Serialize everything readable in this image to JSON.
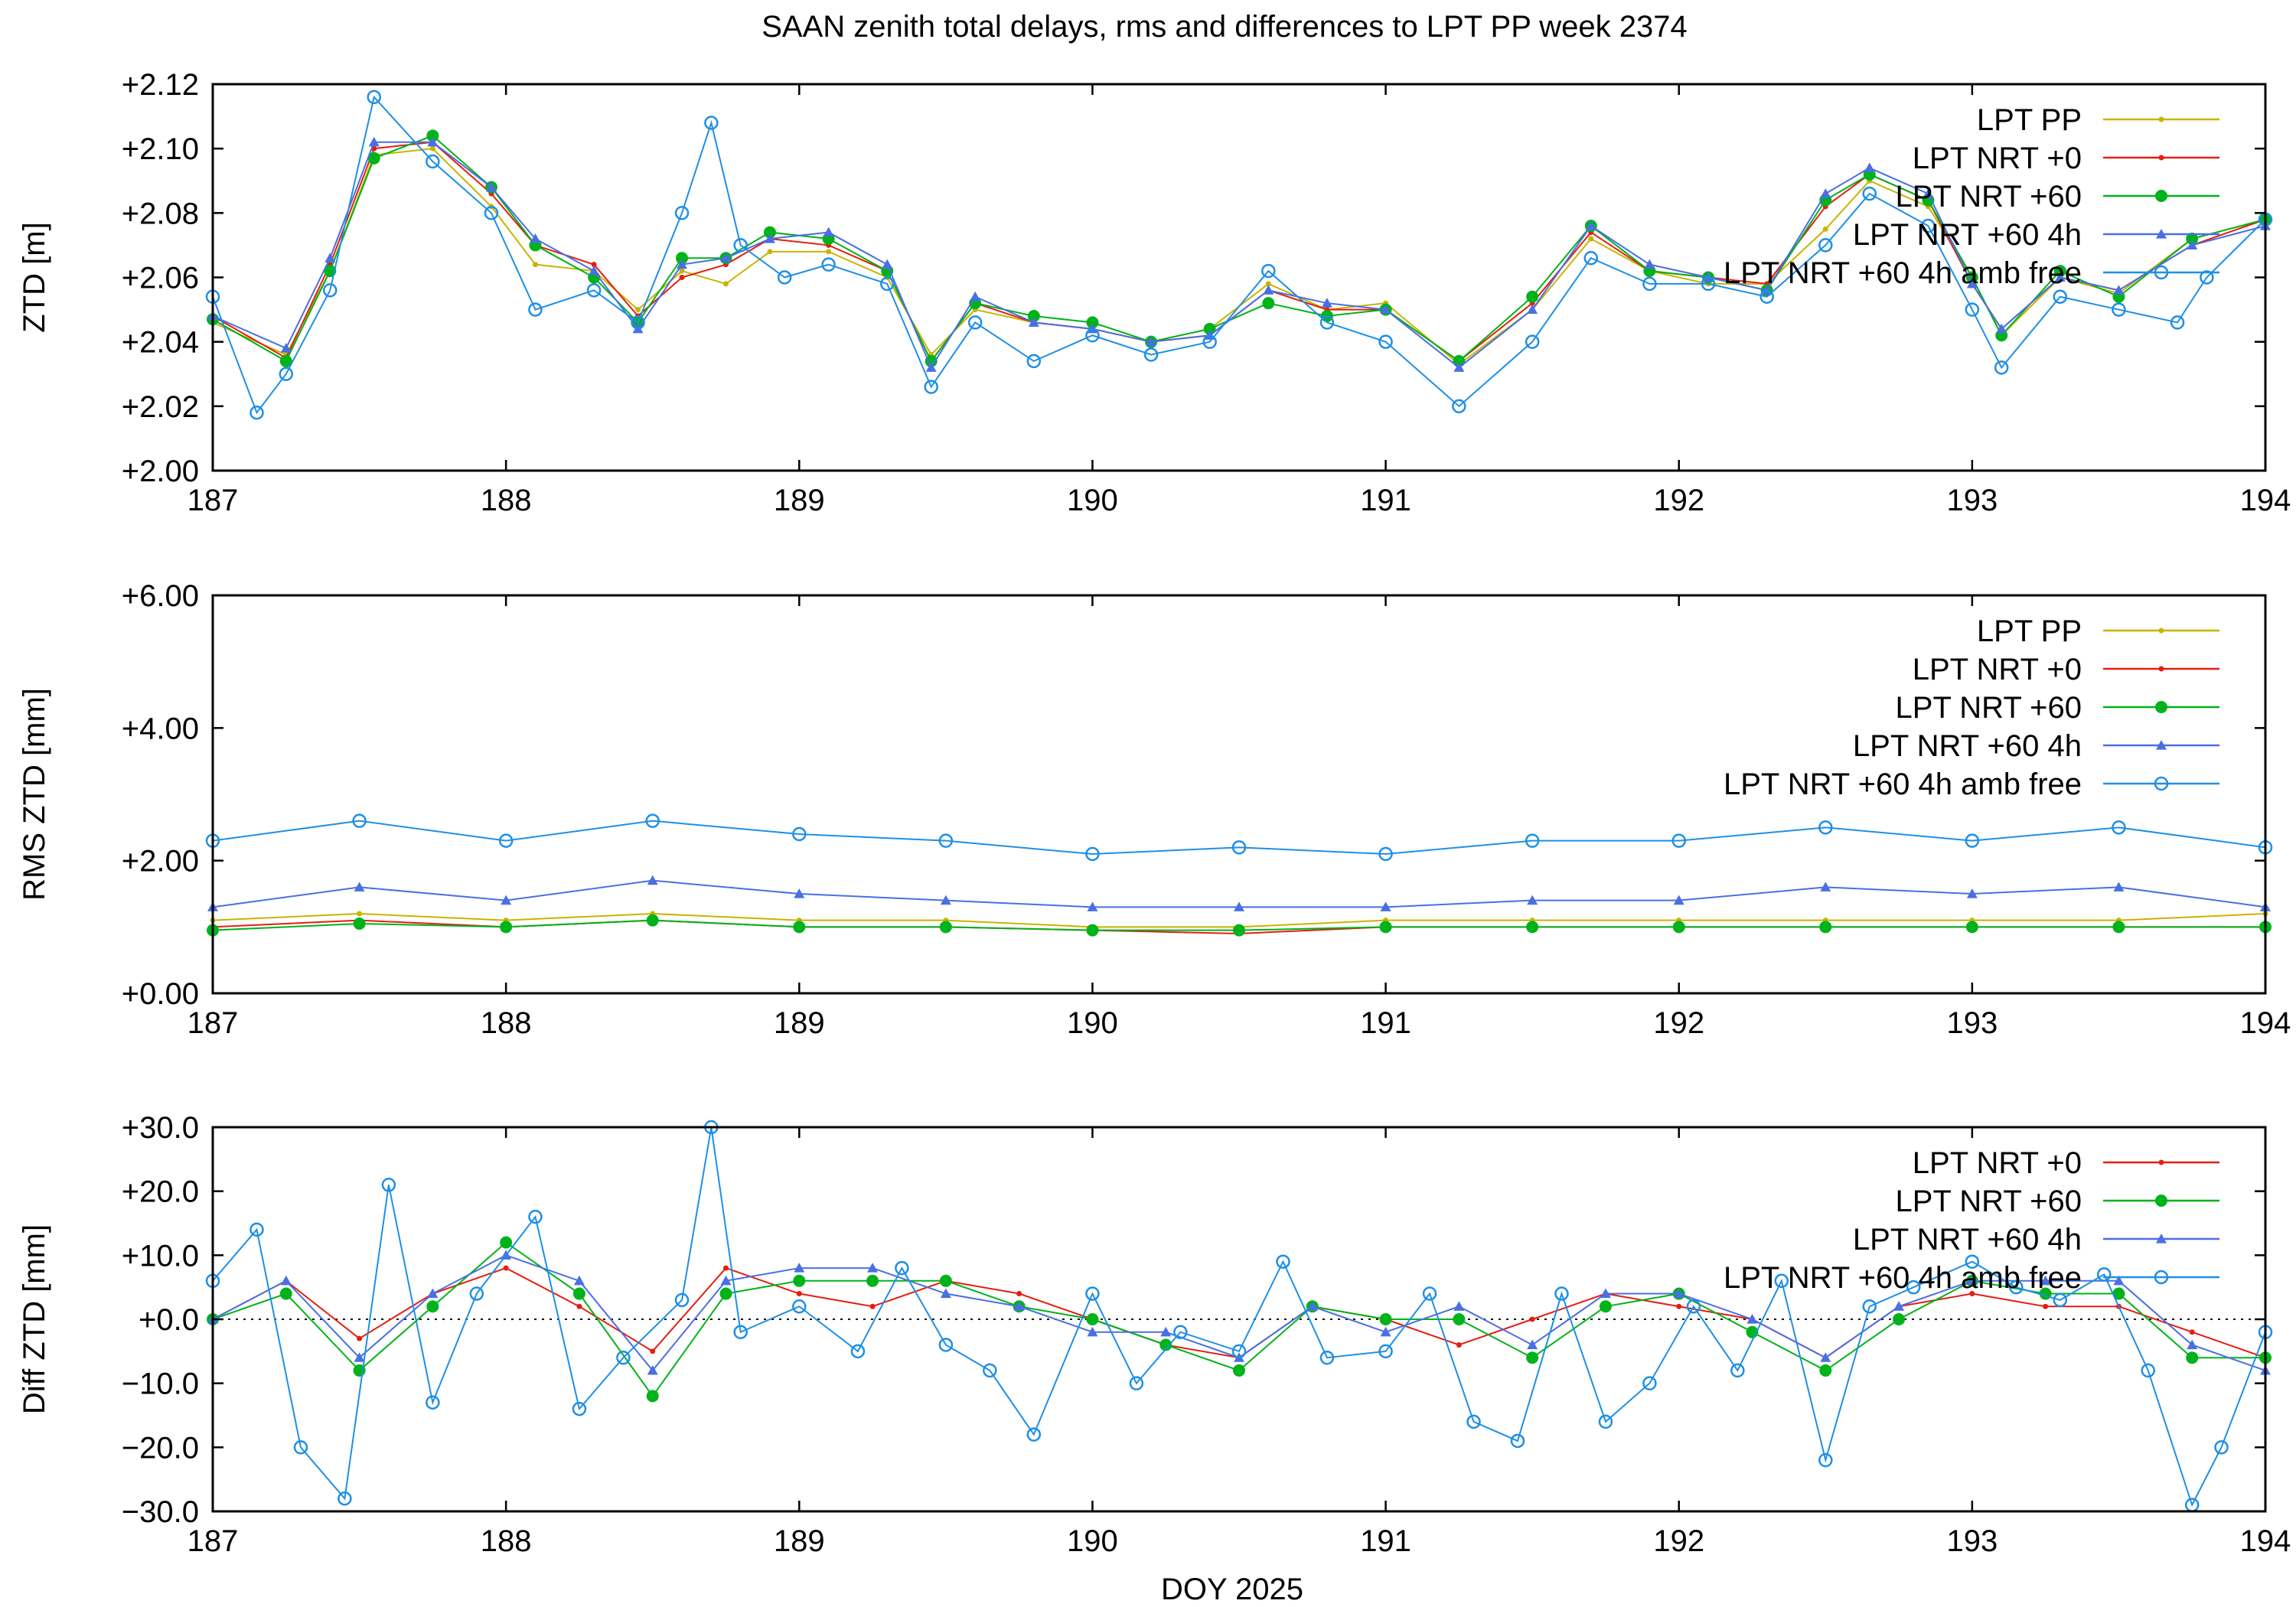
{
  "title": "SAAN zenith total delays, rms and differences to LPT PP week 2374",
  "xlabel": "DOY 2025",
  "colors": {
    "pp": "#c8b400",
    "nrt0": "#e51e10",
    "nrt60": "#00b31a",
    "nrt60_4h": "#4a6fe3",
    "amb_free": "#1e8fe6"
  },
  "chart_data": [
    {
      "type": "line",
      "id": "ztd",
      "ylabel": "ZTD [m]",
      "xlim": [
        187,
        194
      ],
      "ylim": [
        2.0,
        2.12
      ],
      "xticks": [
        187,
        188,
        189,
        190,
        191,
        192,
        193,
        194
      ],
      "xtick_labels": [
        "187",
        "188",
        "189",
        "190",
        "191",
        "192",
        "193",
        "194"
      ],
      "yticks": [
        2.0,
        2.02,
        2.04,
        2.06,
        2.08,
        2.1,
        2.12
      ],
      "ytick_labels": [
        "+2.00",
        "+2.02",
        "+2.04",
        "+2.06",
        "+2.08",
        "+2.10",
        "+2.12"
      ],
      "legend_position": "top-right",
      "series": [
        {
          "name": "LPT PP",
          "key": "pp",
          "marker": "dot",
          "x": [
            187.0,
            187.25,
            187.4,
            187.55,
            187.75,
            187.95,
            188.1,
            188.3,
            188.45,
            188.6,
            188.75,
            188.9,
            189.1,
            189.3,
            189.45,
            189.6,
            189.8,
            190.0,
            190.2,
            190.4,
            190.6,
            190.8,
            191.0,
            191.25,
            191.5,
            191.7,
            191.9,
            192.1,
            192.3,
            192.5,
            192.65,
            192.85,
            193.0,
            193.1,
            193.3,
            193.5,
            193.75,
            194.0
          ],
          "y": [
            2.046,
            2.036,
            2.062,
            2.098,
            2.1,
            2.082,
            2.064,
            2.062,
            2.05,
            2.062,
            2.058,
            2.068,
            2.068,
            2.06,
            2.036,
            2.05,
            2.046,
            2.044,
            2.04,
            2.044,
            2.058,
            2.05,
            2.052,
            2.033,
            2.05,
            2.072,
            2.062,
            2.058,
            2.058,
            2.075,
            2.09,
            2.082,
            2.06,
            2.042,
            2.06,
            2.055,
            2.072,
            2.078
          ]
        },
        {
          "name": "LPT NRT +0",
          "key": "nrt0",
          "marker": "dot",
          "x": [
            187.0,
            187.25,
            187.4,
            187.55,
            187.75,
            187.95,
            188.1,
            188.3,
            188.45,
            188.6,
            188.75,
            188.9,
            189.1,
            189.3,
            189.45,
            189.6,
            189.8,
            190.0,
            190.2,
            190.4,
            190.6,
            190.8,
            191.0,
            191.25,
            191.5,
            191.7,
            191.9,
            192.1,
            192.3,
            192.5,
            192.65,
            192.85,
            193.0,
            193.1,
            193.3,
            193.5,
            193.75,
            194.0
          ],
          "y": [
            2.048,
            2.035,
            2.064,
            2.1,
            2.102,
            2.086,
            2.07,
            2.064,
            2.048,
            2.06,
            2.064,
            2.072,
            2.07,
            2.062,
            2.034,
            2.052,
            2.046,
            2.044,
            2.04,
            2.042,
            2.056,
            2.05,
            2.05,
            2.034,
            2.052,
            2.074,
            2.062,
            2.06,
            2.058,
            2.082,
            2.092,
            2.084,
            2.058,
            2.044,
            2.06,
            2.056,
            2.07,
            2.078
          ]
        },
        {
          "name": "LPT NRT +60",
          "key": "nrt60",
          "marker": "bigdot",
          "x": [
            187.0,
            187.25,
            187.4,
            187.55,
            187.75,
            187.95,
            188.1,
            188.3,
            188.45,
            188.6,
            188.75,
            188.9,
            189.1,
            189.3,
            189.45,
            189.6,
            189.8,
            190.0,
            190.2,
            190.4,
            190.6,
            190.8,
            191.0,
            191.25,
            191.5,
            191.7,
            191.9,
            192.1,
            192.3,
            192.5,
            192.65,
            192.85,
            193.0,
            193.1,
            193.3,
            193.5,
            193.75,
            194.0
          ],
          "y": [
            2.047,
            2.034,
            2.062,
            2.097,
            2.104,
            2.088,
            2.07,
            2.06,
            2.046,
            2.066,
            2.066,
            2.074,
            2.072,
            2.062,
            2.034,
            2.052,
            2.048,
            2.046,
            2.04,
            2.044,
            2.052,
            2.048,
            2.05,
            2.034,
            2.054,
            2.076,
            2.062,
            2.06,
            2.056,
            2.084,
            2.092,
            2.084,
            2.06,
            2.042,
            2.062,
            2.054,
            2.072,
            2.078
          ]
        },
        {
          "name": "LPT NRT +60 4h",
          "key": "nrt60_4h",
          "marker": "triangle",
          "x": [
            187.0,
            187.25,
            187.4,
            187.55,
            187.75,
            187.95,
            188.1,
            188.3,
            188.45,
            188.6,
            188.75,
            188.9,
            189.1,
            189.3,
            189.45,
            189.6,
            189.8,
            190.0,
            190.2,
            190.4,
            190.6,
            190.8,
            191.0,
            191.25,
            191.5,
            191.7,
            191.9,
            192.1,
            192.3,
            192.5,
            192.65,
            192.85,
            193.0,
            193.1,
            193.3,
            193.5,
            193.75,
            194.0
          ],
          "y": [
            2.048,
            2.038,
            2.066,
            2.102,
            2.102,
            2.088,
            2.072,
            2.062,
            2.044,
            2.064,
            2.066,
            2.072,
            2.074,
            2.064,
            2.032,
            2.054,
            2.046,
            2.044,
            2.04,
            2.042,
            2.056,
            2.052,
            2.05,
            2.032,
            2.05,
            2.076,
            2.064,
            2.06,
            2.056,
            2.086,
            2.094,
            2.086,
            2.058,
            2.044,
            2.06,
            2.056,
            2.07,
            2.076
          ]
        },
        {
          "name": "LPT NRT +60 4h amb free",
          "key": "amb_free",
          "marker": "circle",
          "x": [
            187.0,
            187.15,
            187.25,
            187.4,
            187.55,
            187.75,
            187.95,
            188.1,
            188.3,
            188.45,
            188.6,
            188.7,
            188.8,
            188.95,
            189.1,
            189.3,
            189.45,
            189.6,
            189.8,
            190.0,
            190.2,
            190.4,
            190.6,
            190.8,
            191.0,
            191.25,
            191.5,
            191.7,
            191.9,
            192.1,
            192.3,
            192.5,
            192.65,
            192.85,
            193.0,
            193.1,
            193.3,
            193.5,
            193.7,
            193.8,
            194.0
          ],
          "y": [
            2.054,
            2.018,
            2.03,
            2.056,
            2.116,
            2.096,
            2.08,
            2.05,
            2.056,
            2.046,
            2.08,
            2.108,
            2.07,
            2.06,
            2.064,
            2.058,
            2.026,
            2.046,
            2.034,
            2.042,
            2.036,
            2.04,
            2.062,
            2.046,
            2.04,
            2.02,
            2.04,
            2.066,
            2.058,
            2.058,
            2.054,
            2.07,
            2.086,
            2.076,
            2.05,
            2.032,
            2.054,
            2.05,
            2.046,
            2.06,
            2.078
          ]
        }
      ]
    },
    {
      "type": "line",
      "id": "rms",
      "ylabel": "RMS ZTD [mm]",
      "xlim": [
        187,
        194
      ],
      "ylim": [
        0,
        6
      ],
      "xticks": [
        187,
        188,
        189,
        190,
        191,
        192,
        193,
        194
      ],
      "xtick_labels": [
        "187",
        "188",
        "189",
        "190",
        "191",
        "192",
        "193",
        "194"
      ],
      "yticks": [
        0,
        2,
        4,
        6
      ],
      "ytick_labels": [
        "+0.00",
        "+2.00",
        "+4.00",
        "+6.00"
      ],
      "legend_position": "top-right",
      "series": [
        {
          "name": "LPT PP",
          "key": "pp",
          "marker": "dot",
          "x": [
            187.0,
            187.5,
            188.0,
            188.5,
            189.0,
            189.5,
            190.0,
            190.5,
            191.0,
            191.5,
            192.0,
            192.5,
            193.0,
            193.5,
            194.0
          ],
          "y": [
            1.1,
            1.2,
            1.1,
            1.2,
            1.1,
            1.1,
            1.0,
            1.0,
            1.1,
            1.1,
            1.1,
            1.1,
            1.1,
            1.1,
            1.2
          ]
        },
        {
          "name": "LPT NRT +0",
          "key": "nrt0",
          "marker": "dot",
          "x": [
            187.0,
            187.5,
            188.0,
            188.5,
            189.0,
            189.5,
            190.0,
            190.5,
            191.0,
            191.5,
            192.0,
            192.5,
            193.0,
            193.5,
            194.0
          ],
          "y": [
            1.0,
            1.1,
            1.0,
            1.1,
            1.0,
            1.0,
            0.95,
            0.9,
            1.0,
            1.0,
            1.0,
            1.0,
            1.0,
            1.0,
            1.0
          ]
        },
        {
          "name": "LPT NRT +60",
          "key": "nrt60",
          "marker": "bigdot",
          "x": [
            187.0,
            187.5,
            188.0,
            188.5,
            189.0,
            189.5,
            190.0,
            190.5,
            191.0,
            191.5,
            192.0,
            192.5,
            193.0,
            193.5,
            194.0
          ],
          "y": [
            0.95,
            1.05,
            1.0,
            1.1,
            1.0,
            1.0,
            0.95,
            0.95,
            1.0,
            1.0,
            1.0,
            1.0,
            1.0,
            1.0,
            1.0
          ]
        },
        {
          "name": "LPT NRT +60 4h",
          "key": "nrt60_4h",
          "marker": "triangle",
          "x": [
            187.0,
            187.5,
            188.0,
            188.5,
            189.0,
            189.5,
            190.0,
            190.5,
            191.0,
            191.5,
            192.0,
            192.5,
            193.0,
            193.5,
            194.0
          ],
          "y": [
            1.3,
            1.6,
            1.4,
            1.7,
            1.5,
            1.4,
            1.3,
            1.3,
            1.3,
            1.4,
            1.4,
            1.6,
            1.5,
            1.6,
            1.3
          ]
        },
        {
          "name": "LPT NRT +60 4h amb free",
          "key": "amb_free",
          "marker": "circle",
          "x": [
            187.0,
            187.5,
            188.0,
            188.5,
            189.0,
            189.5,
            190.0,
            190.5,
            191.0,
            191.5,
            192.0,
            192.5,
            193.0,
            193.5,
            194.0
          ],
          "y": [
            2.3,
            2.6,
            2.3,
            2.6,
            2.4,
            2.3,
            2.1,
            2.2,
            2.1,
            2.3,
            2.3,
            2.5,
            2.3,
            2.5,
            2.2
          ]
        }
      ]
    },
    {
      "type": "line",
      "id": "diff",
      "ylabel": "Diff ZTD [mm]",
      "xlim": [
        187,
        194
      ],
      "ylim": [
        -30,
        30
      ],
      "xticks": [
        187,
        188,
        189,
        190,
        191,
        192,
        193,
        194
      ],
      "xtick_labels": [
        "187",
        "188",
        "189",
        "190",
        "191",
        "192",
        "193",
        "194"
      ],
      "yticks": [
        -30,
        -20,
        -10,
        0,
        10,
        20,
        30
      ],
      "ytick_labels": [
        "−30.0",
        "−20.0",
        "−10.0",
        "+0.0",
        "+10.0",
        "+20.0",
        "+30.0"
      ],
      "legend_position": "top-right",
      "series": [
        {
          "name": "LPT NRT +0",
          "key": "nrt0",
          "marker": "dot",
          "x": [
            187.0,
            187.25,
            187.5,
            187.75,
            188.0,
            188.25,
            188.5,
            188.75,
            189.0,
            189.25,
            189.5,
            189.75,
            190.0,
            190.25,
            190.5,
            190.75,
            191.0,
            191.25,
            191.5,
            191.75,
            192.0,
            192.25,
            192.5,
            192.75,
            193.0,
            193.25,
            193.5,
            193.75,
            194.0
          ],
          "y": [
            0,
            6,
            -3,
            4,
            8,
            2,
            -5,
            8,
            4,
            2,
            6,
            4,
            0,
            -4,
            -6,
            2,
            0,
            -4,
            0,
            4,
            2,
            0,
            -6,
            2,
            4,
            2,
            2,
            -2,
            -6
          ]
        },
        {
          "name": "LPT NRT +60",
          "key": "nrt60",
          "marker": "bigdot",
          "x": [
            187.0,
            187.25,
            187.5,
            187.75,
            188.0,
            188.25,
            188.5,
            188.75,
            189.0,
            189.25,
            189.5,
            189.75,
            190.0,
            190.25,
            190.5,
            190.75,
            191.0,
            191.25,
            191.5,
            191.75,
            192.0,
            192.25,
            192.5,
            192.75,
            193.0,
            193.25,
            193.5,
            193.75,
            194.0
          ],
          "y": [
            0,
            4,
            -8,
            2,
            12,
            4,
            -12,
            4,
            6,
            6,
            6,
            2,
            0,
            -4,
            -8,
            2,
            0,
            0,
            -6,
            2,
            4,
            -2,
            -8,
            0,
            6,
            4,
            4,
            -6,
            -6
          ]
        },
        {
          "name": "LPT NRT +60 4h",
          "key": "nrt60_4h",
          "marker": "triangle",
          "x": [
            187.0,
            187.25,
            187.5,
            187.75,
            188.0,
            188.25,
            188.5,
            188.75,
            189.0,
            189.25,
            189.5,
            189.75,
            190.0,
            190.25,
            190.5,
            190.75,
            191.0,
            191.25,
            191.5,
            191.75,
            192.0,
            192.25,
            192.5,
            192.75,
            193.0,
            193.25,
            193.5,
            193.75,
            194.0
          ],
          "y": [
            0,
            6,
            -6,
            4,
            10,
            6,
            -8,
            6,
            8,
            8,
            4,
            2,
            -2,
            -2,
            -6,
            2,
            -2,
            2,
            -4,
            4,
            4,
            0,
            -6,
            2,
            6,
            6,
            6,
            -4,
            -8
          ]
        },
        {
          "name": "LPT NRT +60 4h amb free",
          "key": "amb_free",
          "marker": "circle",
          "x": [
            187.0,
            187.15,
            187.3,
            187.45,
            187.6,
            187.75,
            187.9,
            188.1,
            188.25,
            188.4,
            188.6,
            188.7,
            188.8,
            189.0,
            189.2,
            189.35,
            189.5,
            189.65,
            189.8,
            190.0,
            190.15,
            190.3,
            190.5,
            190.65,
            190.8,
            191.0,
            191.15,
            191.3,
            191.45,
            191.6,
            191.75,
            191.9,
            192.05,
            192.2,
            192.35,
            192.5,
            192.65,
            192.8,
            193.0,
            193.15,
            193.3,
            193.45,
            193.6,
            193.75,
            193.85,
            194.0
          ],
          "y": [
            6,
            14,
            -20,
            -28,
            21,
            -13,
            4,
            16,
            -14,
            -6,
            3,
            30,
            -2,
            2,
            -5,
            8,
            -4,
            -8,
            -18,
            4,
            -10,
            -2,
            -5,
            9,
            -6,
            -5,
            4,
            -16,
            -19,
            4,
            -16,
            -10,
            2,
            -8,
            6,
            -22,
            2,
            5,
            9,
            5,
            3,
            7,
            -8,
            -29,
            -20,
            -2
          ]
        }
      ]
    }
  ]
}
